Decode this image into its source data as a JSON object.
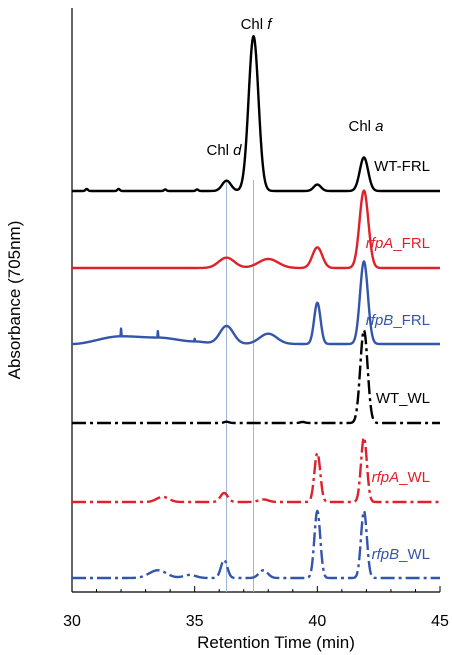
{
  "chart_data": {
    "type": "line",
    "xlabel": "Retention Time (min)",
    "ylabel": "Absorbance (705nm)",
    "xlim": [
      30,
      45
    ],
    "xticks": [
      "30",
      "35",
      "40",
      "45"
    ],
    "grid": false,
    "peak_labels": [
      {
        "prefix": "Chl ",
        "italic": "d",
        "x": 36.3
      },
      {
        "prefix": "Chl ",
        "italic": "f",
        "x": 37.4
      },
      {
        "prefix": "Chl ",
        "italic": "a",
        "x": 41.9
      }
    ],
    "marker_lines": [
      36.3,
      37.4
    ],
    "series": [
      {
        "label_italic": "",
        "label_plain": "WT-FRL",
        "color": "#000000",
        "dash": "solid",
        "baseline": 0.0,
        "peaks": [
          [
            36.3,
            0.04,
            0.18
          ],
          [
            37.4,
            0.6,
            0.2
          ],
          [
            40.0,
            0.025,
            0.15
          ],
          [
            41.9,
            0.13,
            0.17
          ],
          [
            30.6,
            0.008,
            0.05
          ],
          [
            31.9,
            0.008,
            0.05
          ],
          [
            33.8,
            0.006,
            0.05
          ],
          [
            35.1,
            0.006,
            0.05
          ]
        ]
      },
      {
        "label_italic": "rfpA",
        "label_plain": "_FRL",
        "color": "#e0202a",
        "dash": "solid",
        "baseline": 0.0,
        "peaks": [
          [
            36.3,
            0.04,
            0.32
          ],
          [
            38.0,
            0.035,
            0.4
          ],
          [
            40.0,
            0.08,
            0.2
          ],
          [
            41.9,
            0.3,
            0.18
          ]
        ]
      },
      {
        "label_italic": "rfpB",
        "label_plain": "_FRL",
        "color": "#3355aa",
        "dash": "solid",
        "baseline": 0.0,
        "peaks": [
          [
            36.3,
            0.07,
            0.28
          ],
          [
            38.0,
            0.04,
            0.35
          ],
          [
            40.0,
            0.16,
            0.13
          ],
          [
            41.9,
            0.32,
            0.16
          ]
        ],
        "hump": [
          [
            30.0,
            0.0
          ],
          [
            32.0,
            0.03
          ],
          [
            33.5,
            0.025
          ],
          [
            35.0,
            0.01
          ],
          [
            36.0,
            0.0
          ]
        ]
      },
      {
        "label_italic": "",
        "label_plain": "WT_WL",
        "color": "#000000",
        "dash": "dashdot",
        "baseline": 0.0,
        "peaks": [
          [
            41.9,
            0.36,
            0.15
          ],
          [
            36.3,
            0.005,
            0.1
          ],
          [
            39.4,
            0.004,
            0.1
          ]
        ]
      },
      {
        "label_italic": "rfpA",
        "label_plain": "_WL",
        "color": "#e0202a",
        "dash": "dashdot",
        "baseline": 0.0,
        "peaks": [
          [
            33.7,
            0.02,
            0.25
          ],
          [
            36.2,
            0.035,
            0.15
          ],
          [
            37.8,
            0.01,
            0.2
          ],
          [
            40.0,
            0.19,
            0.12
          ],
          [
            41.9,
            0.25,
            0.12
          ]
        ]
      },
      {
        "label_italic": "rfpB",
        "label_plain": "_WL",
        "color": "#3355aa",
        "dash": "dashdot",
        "baseline": 0.0,
        "peaks": [
          [
            33.5,
            0.03,
            0.35
          ],
          [
            34.8,
            0.012,
            0.25
          ],
          [
            36.2,
            0.07,
            0.13
          ],
          [
            37.8,
            0.03,
            0.18
          ],
          [
            40.0,
            0.26,
            0.12
          ],
          [
            41.9,
            0.26,
            0.12
          ]
        ]
      }
    ]
  }
}
